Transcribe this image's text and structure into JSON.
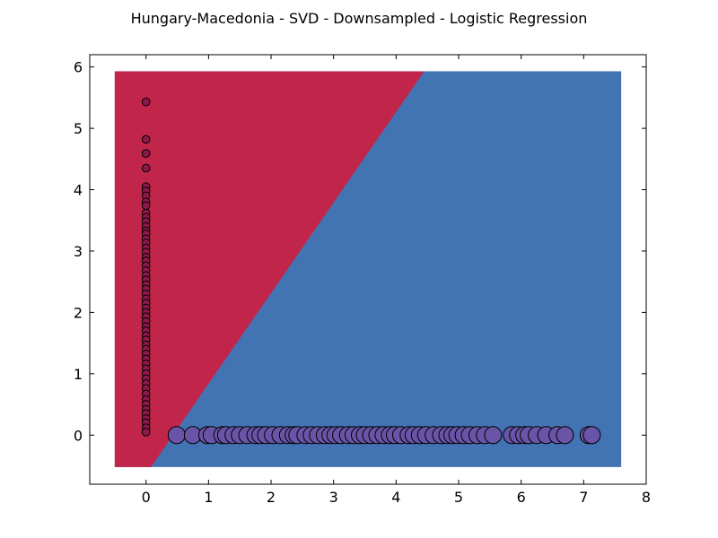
{
  "chart_data": {
    "type": "scatter",
    "title": "Hungary-Macedonia - SVD - Downsampled - Logistic Regression",
    "xlabel": "",
    "ylabel": "",
    "xlim": [
      -0.9,
      8
    ],
    "ylim": [
      -0.8,
      6.2
    ],
    "xticks": [
      "0",
      "1",
      "2",
      "3",
      "4",
      "5",
      "6",
      "7",
      "8"
    ],
    "yticks": [
      "0",
      "1",
      "2",
      "3",
      "4",
      "5",
      "6"
    ],
    "grid": false,
    "decision_regions": {
      "extent": {
        "x": [
          -0.5,
          7.6
        ],
        "y": [
          -0.52,
          5.93
        ]
      },
      "boundary": [
        [
          0.08,
          -0.52
        ],
        [
          4.45,
          5.93
        ]
      ],
      "colors": {
        "left": "#c1264a",
        "right": "#4274b3"
      }
    },
    "series": [
      {
        "color": "#8b1a4a",
        "size": "small",
        "points": [
          [
            0,
            5.43
          ],
          [
            0,
            4.82
          ],
          [
            0,
            4.59
          ],
          [
            0,
            4.35
          ],
          [
            0,
            4.05
          ],
          [
            0,
            3.98
          ],
          [
            0,
            3.9
          ],
          [
            0,
            3.8
          ],
          [
            0,
            3.74
          ],
          [
            0,
            3.62
          ],
          [
            0,
            3.55
          ],
          [
            0,
            3.48
          ],
          [
            0,
            3.4
          ],
          [
            0,
            3.33
          ],
          [
            0,
            3.28
          ],
          [
            0,
            3.2
          ],
          [
            0,
            3.13
          ],
          [
            0,
            3.05
          ],
          [
            0,
            2.98
          ],
          [
            0,
            2.9
          ],
          [
            0,
            2.84
          ],
          [
            0,
            2.76
          ],
          [
            0,
            2.68
          ],
          [
            0,
            2.6
          ],
          [
            0,
            2.53
          ],
          [
            0,
            2.45
          ],
          [
            0,
            2.38
          ],
          [
            0,
            2.3
          ],
          [
            0,
            2.22
          ],
          [
            0,
            2.15
          ],
          [
            0,
            2.07
          ],
          [
            0,
            2.0
          ],
          [
            0,
            1.93
          ],
          [
            0,
            1.85
          ],
          [
            0,
            1.77
          ],
          [
            0,
            1.7
          ],
          [
            0,
            1.62
          ],
          [
            0,
            1.55
          ],
          [
            0,
            1.47
          ],
          [
            0,
            1.4
          ],
          [
            0,
            1.32
          ],
          [
            0,
            1.24
          ],
          [
            0,
            1.16
          ],
          [
            0,
            1.08
          ],
          [
            0,
            1.0
          ],
          [
            0,
            0.92
          ],
          [
            0,
            0.84
          ],
          [
            0,
            0.76
          ],
          [
            0,
            0.67
          ],
          [
            0,
            0.58
          ],
          [
            0,
            0.5
          ],
          [
            0,
            0.42
          ],
          [
            0,
            0.35
          ],
          [
            0,
            0.27
          ],
          [
            0,
            0.2
          ],
          [
            0,
            0.12
          ],
          [
            0,
            0.05
          ]
        ]
      },
      {
        "color": "#6a54a8",
        "size": "large",
        "points": [
          [
            0.49,
            0
          ],
          [
            0.75,
            0
          ],
          [
            0.98,
            0
          ],
          [
            1.05,
            0
          ],
          [
            1.22,
            0
          ],
          [
            1.28,
            0
          ],
          [
            1.4,
            0
          ],
          [
            1.5,
            0
          ],
          [
            1.62,
            0
          ],
          [
            1.75,
            0
          ],
          [
            1.83,
            0
          ],
          [
            1.92,
            0
          ],
          [
            2.03,
            0
          ],
          [
            2.15,
            0
          ],
          [
            2.27,
            0
          ],
          [
            2.36,
            0
          ],
          [
            2.42,
            0
          ],
          [
            2.55,
            0
          ],
          [
            2.65,
            0
          ],
          [
            2.75,
            0
          ],
          [
            2.86,
            0
          ],
          [
            2.95,
            0
          ],
          [
            3.03,
            0
          ],
          [
            3.12,
            0
          ],
          [
            3.23,
            0
          ],
          [
            3.32,
            0
          ],
          [
            3.42,
            0
          ],
          [
            3.5,
            0
          ],
          [
            3.6,
            0
          ],
          [
            3.7,
            0
          ],
          [
            3.8,
            0
          ],
          [
            3.9,
            0
          ],
          [
            3.98,
            0
          ],
          [
            4.08,
            0
          ],
          [
            4.2,
            0
          ],
          [
            4.28,
            0
          ],
          [
            4.38,
            0
          ],
          [
            4.48,
            0
          ],
          [
            4.6,
            0
          ],
          [
            4.72,
            0
          ],
          [
            4.82,
            0
          ],
          [
            4.9,
            0
          ],
          [
            4.98,
            0
          ],
          [
            5.08,
            0
          ],
          [
            5.18,
            0
          ],
          [
            5.3,
            0
          ],
          [
            5.42,
            0
          ],
          [
            5.55,
            0
          ],
          [
            5.85,
            0
          ],
          [
            5.95,
            0
          ],
          [
            6.05,
            0
          ],
          [
            6.12,
            0
          ],
          [
            6.25,
            0
          ],
          [
            6.4,
            0
          ],
          [
            6.58,
            0
          ],
          [
            6.7,
            0
          ],
          [
            7.08,
            0
          ],
          [
            7.13,
            0
          ]
        ]
      }
    ]
  }
}
